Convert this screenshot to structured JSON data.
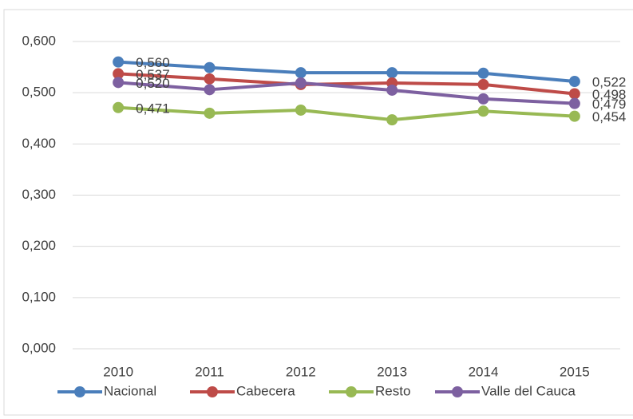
{
  "chart_data": {
    "type": "line",
    "categories": [
      "2010",
      "2011",
      "2012",
      "2013",
      "2014",
      "2015"
    ],
    "series": [
      {
        "name": "Nacional",
        "color": "#4a7ebb",
        "values": [
          0.56,
          0.549,
          0.539,
          0.539,
          0.538,
          0.522
        ],
        "value_labels": [
          "0,560",
          null,
          null,
          null,
          null,
          "0,522"
        ]
      },
      {
        "name": "Cabecera",
        "color": "#be4b48",
        "values": [
          0.537,
          0.527,
          0.516,
          0.519,
          0.516,
          0.498
        ],
        "value_labels": [
          "0,537",
          null,
          null,
          null,
          null,
          "0,498"
        ]
      },
      {
        "name": "Resto",
        "color": "#98b954",
        "values": [
          0.471,
          0.46,
          0.466,
          0.447,
          0.464,
          0.454
        ],
        "value_labels": [
          "0,471",
          null,
          null,
          null,
          null,
          "0,454"
        ]
      },
      {
        "name": "Valle del Cauca",
        "color": "#7d60a0",
        "values": [
          0.52,
          0.506,
          0.519,
          0.505,
          0.488,
          0.479
        ],
        "value_labels": [
          "0,520",
          null,
          null,
          null,
          null,
          "0,479"
        ]
      }
    ],
    "ylim": [
      0,
      0.6
    ],
    "yticks": [
      {
        "value": 0,
        "label": "0,000"
      },
      {
        "value": 0.1,
        "label": "0,100"
      },
      {
        "value": 0.2,
        "label": "0,200"
      },
      {
        "value": 0.3,
        "label": "0,300"
      },
      {
        "value": 0.4,
        "label": "0,400"
      },
      {
        "value": 0.5,
        "label": "0,500"
      },
      {
        "value": 0.6,
        "label": "0,600"
      }
    ],
    "grid": true,
    "legend": "bottom"
  }
}
